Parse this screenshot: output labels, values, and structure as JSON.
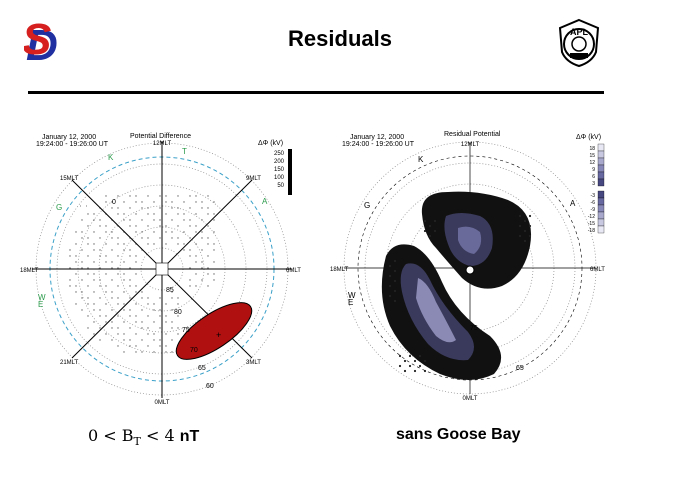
{
  "title": "Residuals",
  "left_panel": {
    "date": "January 12, 2000",
    "time": "19:24:00 - 19:26:00 UT",
    "plot_title": "Potential Difference",
    "legend_unit": "ΔΦ (kV)",
    "legend_values": [
      "250",
      "200",
      "150",
      "100",
      "50"
    ],
    "mlt": {
      "top": "12MLT",
      "bottom": "0MLT",
      "left": "18MLT",
      "right": "6MLT",
      "ul": "15MLT",
      "ur": "9MLT",
      "ll": "21MLT",
      "lr": "3MLT"
    },
    "stations": [
      "K",
      "T",
      "G",
      "A",
      "W",
      "E"
    ],
    "lat_labels": [
      "85",
      "80",
      "75",
      "70",
      "65",
      "60"
    ],
    "inner_mark": "0",
    "caption_prefix": "0 < B",
    "caption_sub": "T",
    "caption_mid": " < 4 ",
    "caption_unit": "nT"
  },
  "right_panel": {
    "date": "January 12, 2000",
    "time": "19:24:00 - 19:26:00 UT",
    "plot_title": "Residual Potential",
    "legend_unit": "ΔΦ (kV)",
    "legend_values": [
      "18",
      "15",
      "12",
      "9",
      "6",
      "3",
      "-3",
      "-6",
      "-9",
      "-12",
      "-15",
      "-18"
    ],
    "mlt": {
      "top": "12MLT",
      "bottom": "0MLT",
      "left": "18MLT",
      "right": "6MLT"
    },
    "stations": [
      "K",
      "G",
      "A",
      "W",
      "E"
    ],
    "lat_labels": [
      "75",
      "65"
    ],
    "caption": "sans Goose Bay"
  },
  "colors": {
    "red_patch": "#b01010",
    "dashed_circle": "#3aa0c8",
    "station_green": "#2a9a4a",
    "sd_red": "#d62020",
    "sd_blue": "#2030a0"
  }
}
